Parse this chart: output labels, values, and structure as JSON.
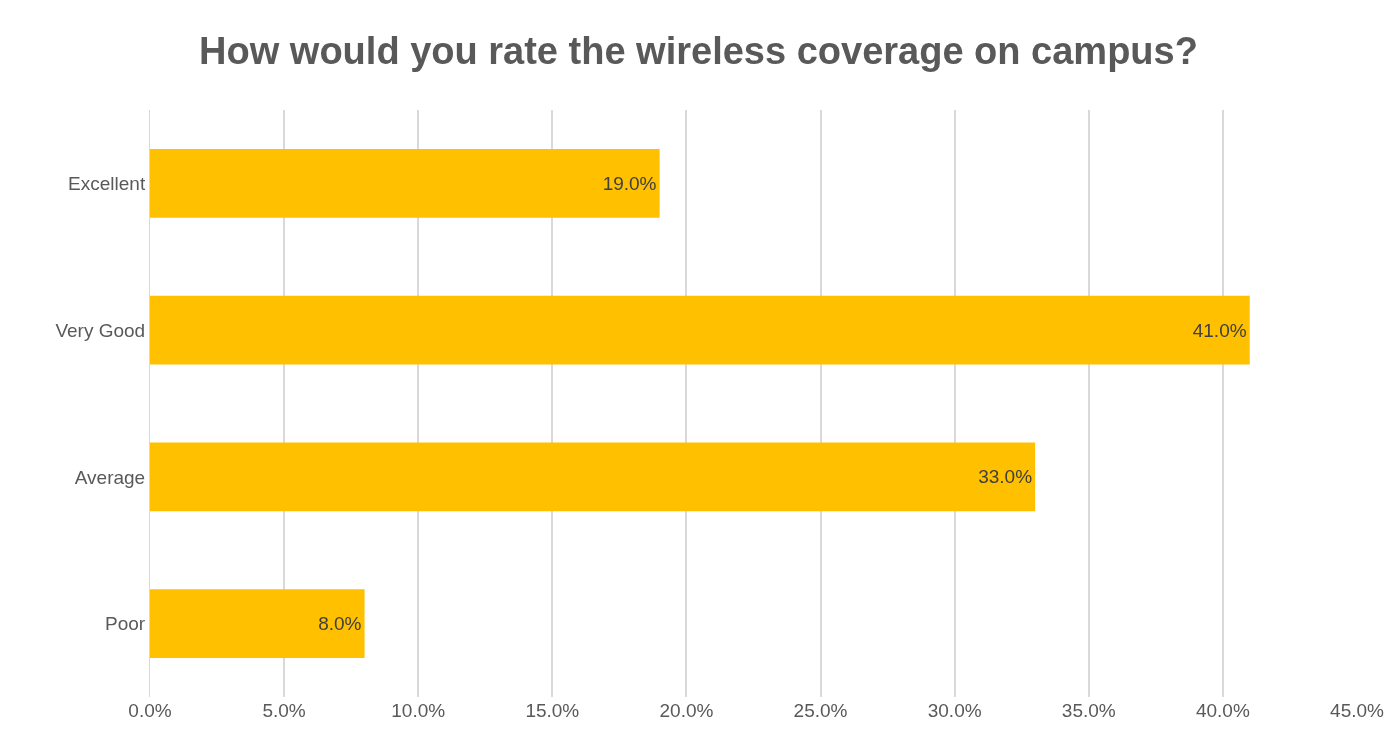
{
  "chart_data": {
    "type": "bar",
    "orientation": "horizontal",
    "title": "How would you rate the wireless coverage on campus?",
    "categories": [
      "Excellent",
      "Very Good",
      "Average",
      "Poor"
    ],
    "values": [
      19,
      41,
      33,
      8
    ],
    "value_labels": [
      "19.0%",
      "41.0%",
      "33.0%",
      "8.0%"
    ],
    "color": "#ffc000",
    "xlim": [
      0,
      45
    ],
    "xticks": [
      {
        "value": 0,
        "label": "0.0%"
      },
      {
        "value": 5,
        "label": "5.0%"
      },
      {
        "value": 10,
        "label": "10.0%"
      },
      {
        "value": 15,
        "label": "15.0%"
      },
      {
        "value": 20,
        "label": "20.0%"
      },
      {
        "value": 25,
        "label": "25.0%"
      },
      {
        "value": 30,
        "label": "30.0%"
      },
      {
        "value": 35,
        "label": "35.0%"
      },
      {
        "value": 40,
        "label": "40.0%"
      },
      {
        "value": 45,
        "label": "45.0%"
      }
    ],
    "grid": "x"
  }
}
